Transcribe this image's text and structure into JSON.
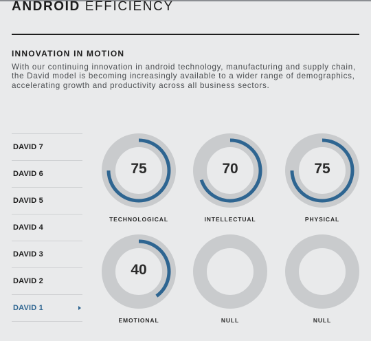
{
  "header": {
    "title_bold": "ANDROID",
    "title_light": "EFFICIENCY"
  },
  "section": {
    "heading": "INNOVATION IN MOTION",
    "body": "With our continuing innovation in android technology, manufacturing and supply chain, the David model is becoming increasingly available to a wider range of demographics, accelerating growth and productivity across all business sectors."
  },
  "models": [
    {
      "label": "DAVID 7",
      "active": false
    },
    {
      "label": "DAVID 6",
      "active": false
    },
    {
      "label": "DAVID 5",
      "active": false
    },
    {
      "label": "DAVID 4",
      "active": false
    },
    {
      "label": "DAVID 3",
      "active": false
    },
    {
      "label": "DAVID 2",
      "active": false
    },
    {
      "label": "DAVID 1",
      "active": true
    }
  ],
  "gauges": [
    {
      "label": "TECHNOLOGICAL",
      "value": "75",
      "percent": 75
    },
    {
      "label": "INTELLECTUAL",
      "value": "70",
      "percent": 70
    },
    {
      "label": "PHYSICAL",
      "value": "75",
      "percent": 75
    },
    {
      "label": "EMOTIONAL",
      "value": "40",
      "percent": 40
    },
    {
      "label": "NULL",
      "value": "",
      "percent": 0
    },
    {
      "label": "NULL",
      "value": "",
      "percent": 0
    }
  ],
  "colors": {
    "accent": "#2e6591",
    "gauge_track": "#c9cbcd",
    "background": "#e9eaeb"
  }
}
